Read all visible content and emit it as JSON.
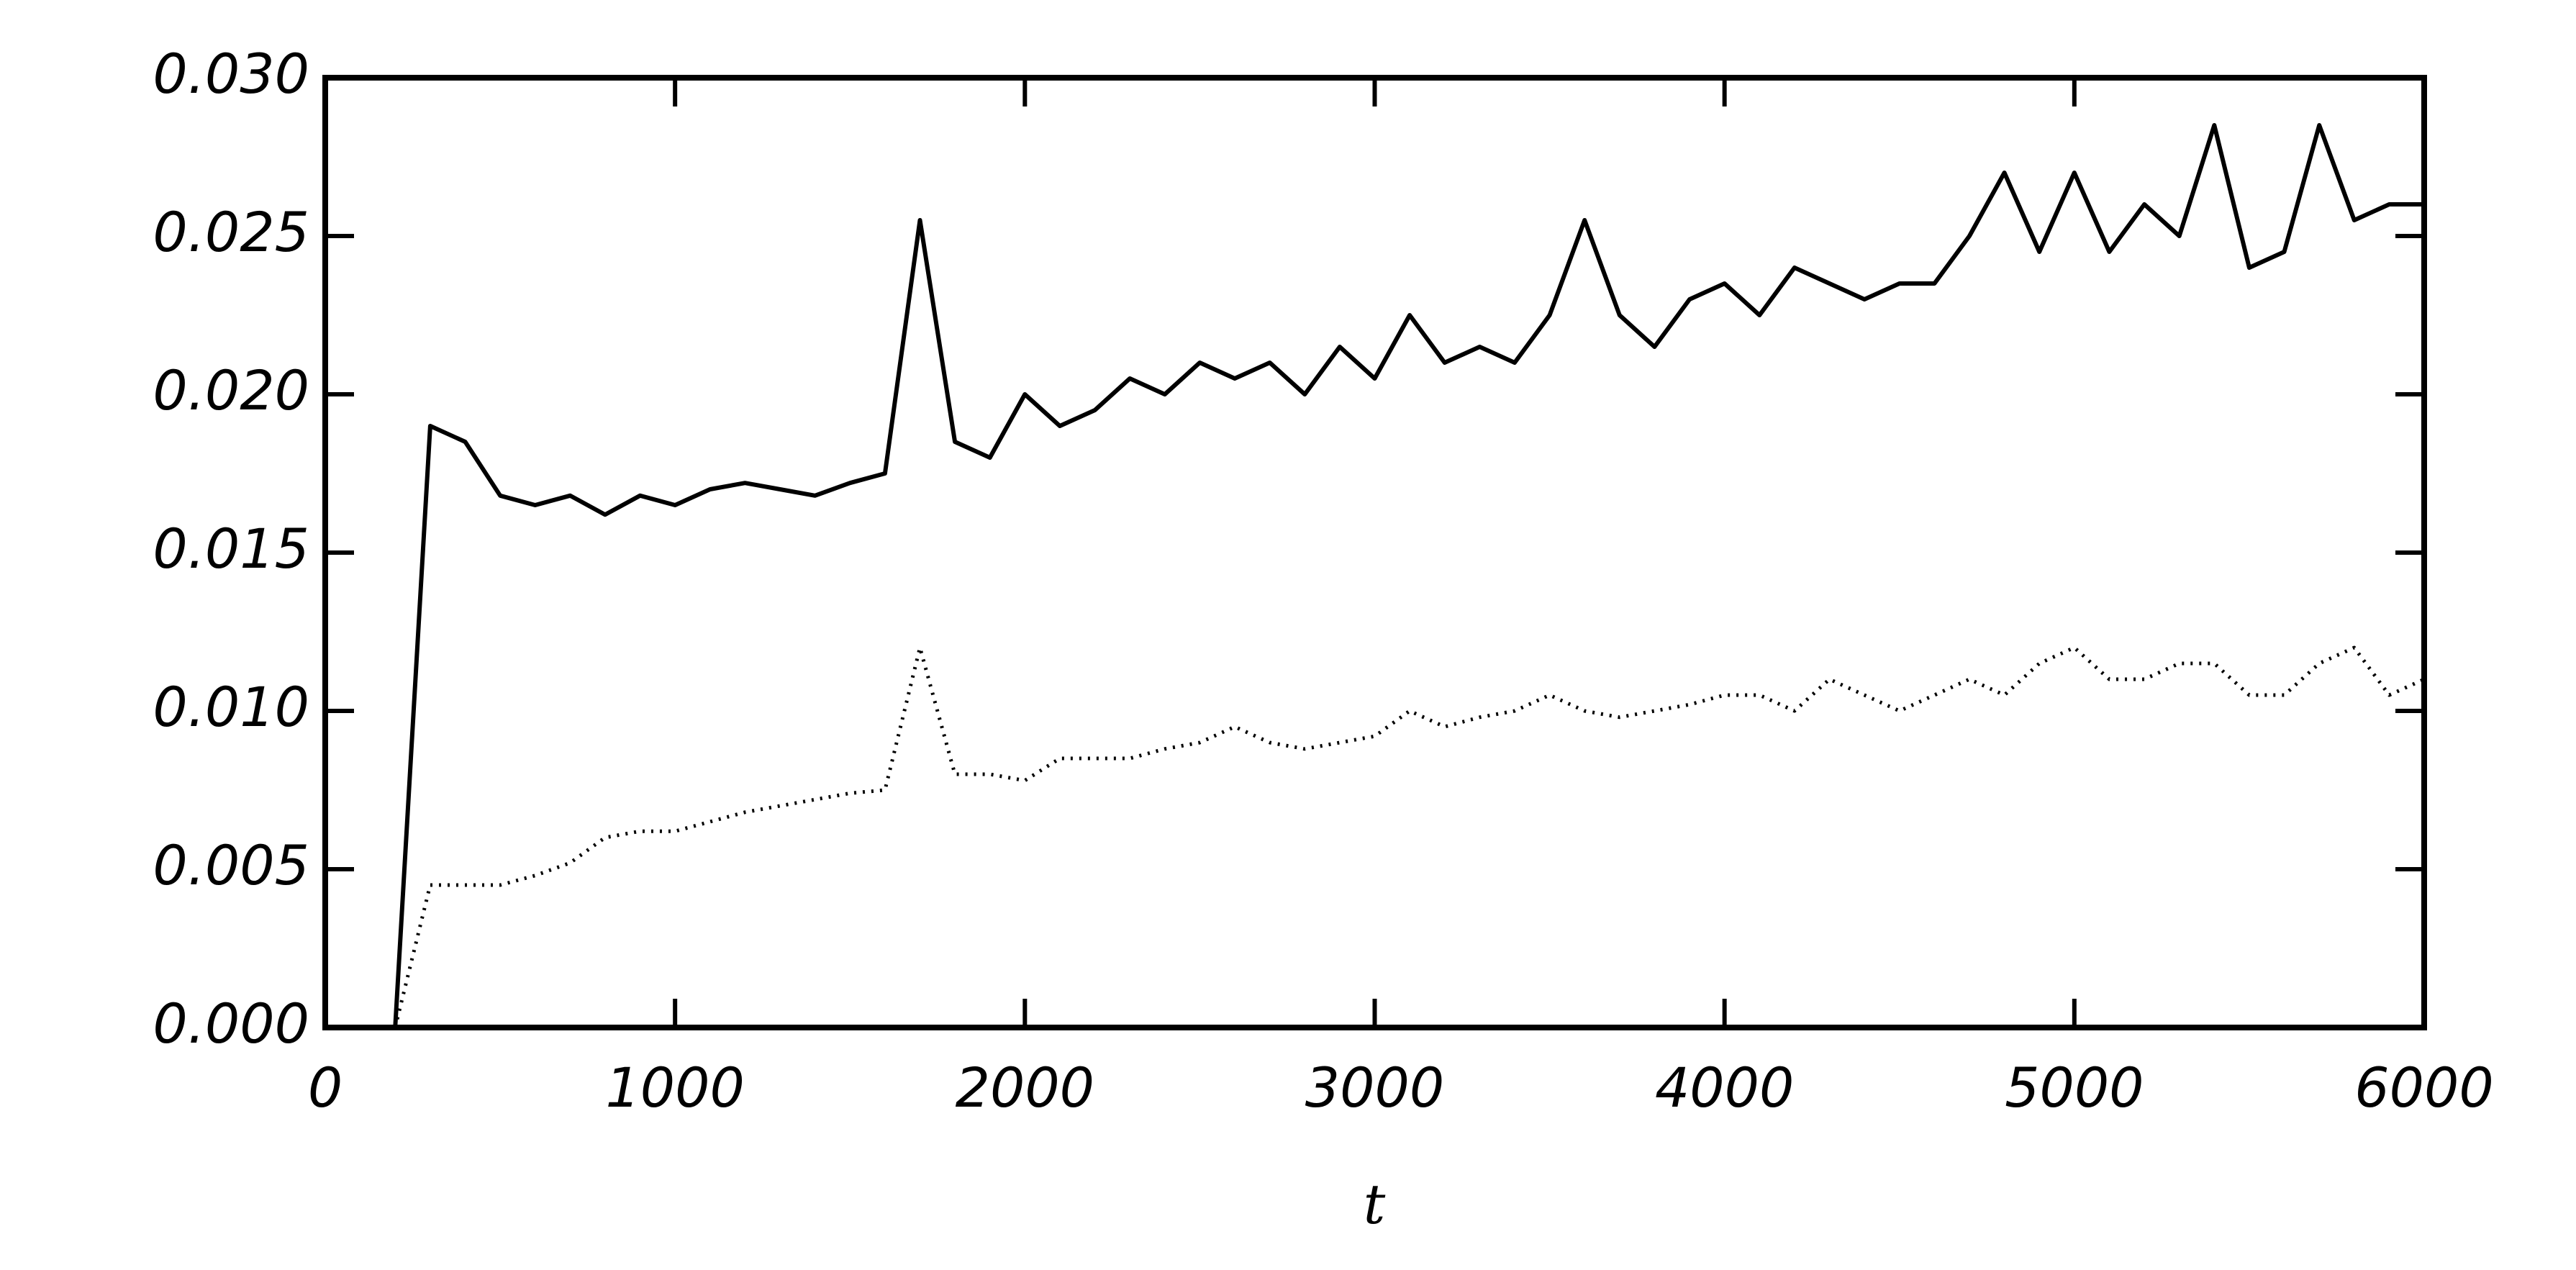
{
  "chart_data": {
    "type": "line",
    "xlabel": "t",
    "x": [
      0,
      100,
      200,
      300,
      400,
      500,
      600,
      700,
      800,
      900,
      1000,
      1100,
      1200,
      1300,
      1400,
      1500,
      1600,
      1700,
      1800,
      1900,
      2000,
      2100,
      2200,
      2300,
      2400,
      2500,
      2600,
      2700,
      2800,
      2900,
      3000,
      3100,
      3200,
      3300,
      3400,
      3500,
      3600,
      3700,
      3800,
      3900,
      4000,
      4100,
      4200,
      4300,
      4400,
      4500,
      4600,
      4700,
      4800,
      4900,
      5000,
      5100,
      5200,
      5300,
      5400,
      5500,
      5600,
      5700,
      5800,
      5900,
      6000
    ],
    "series": [
      {
        "color": "#000000",
        "style": "solid",
        "values": [
          null,
          null,
          0.0,
          0.019,
          0.0185,
          0.0168,
          0.0165,
          0.0168,
          0.0162,
          0.0168,
          0.0165,
          0.017,
          0.0172,
          0.017,
          0.0168,
          0.0172,
          0.0175,
          0.0255,
          0.0185,
          0.018,
          0.02,
          0.019,
          0.0195,
          0.0205,
          0.02,
          0.021,
          0.0205,
          0.021,
          0.02,
          0.0215,
          0.0205,
          0.0225,
          0.021,
          0.0215,
          0.021,
          0.0225,
          0.0255,
          0.0225,
          0.0215,
          0.023,
          0.0235,
          0.0225,
          0.024,
          0.0235,
          0.023,
          0.0235,
          0.0235,
          0.025,
          0.027,
          0.0245,
          0.027,
          0.0245,
          0.026,
          0.025,
          0.0285,
          0.024,
          0.0245,
          0.0285,
          0.0255,
          0.026,
          0.026
        ]
      },
      {
        "color": "#000000",
        "style": "dotted",
        "values": [
          null,
          null,
          0.0,
          0.0045,
          0.0045,
          0.0045,
          0.0048,
          0.0052,
          0.006,
          0.0062,
          0.0062,
          0.0065,
          0.0068,
          0.007,
          0.0072,
          0.0074,
          0.0075,
          0.012,
          0.008,
          0.008,
          0.0078,
          0.0085,
          0.0085,
          0.0085,
          0.0088,
          0.009,
          0.0095,
          0.009,
          0.0088,
          0.009,
          0.0092,
          0.01,
          0.0095,
          0.0098,
          0.01,
          0.0105,
          0.01,
          0.0098,
          0.01,
          0.0102,
          0.0105,
          0.0105,
          0.01,
          0.011,
          0.0105,
          0.01,
          0.0105,
          0.011,
          0.0105,
          0.0115,
          0.012,
          0.011,
          0.011,
          0.0115,
          0.0115,
          0.0105,
          0.0105,
          0.0115,
          0.012,
          0.0105,
          0.011
        ]
      }
    ],
    "xlim": [
      0,
      6000
    ],
    "xticks": [
      0,
      1000,
      2000,
      3000,
      4000,
      5000,
      6000
    ],
    "ylim": [
      0,
      0.03
    ],
    "yticks": [
      {
        "value": 0,
        "label": "0.000"
      },
      0.005,
      {
        "value": 0.01,
        "label": "0.010"
      },
      0.015,
      {
        "value": 0.02,
        "label": "0.020"
      },
      0.025,
      {
        "value": 0.03,
        "label": "0.030"
      }
    ],
    "grid": false
  }
}
